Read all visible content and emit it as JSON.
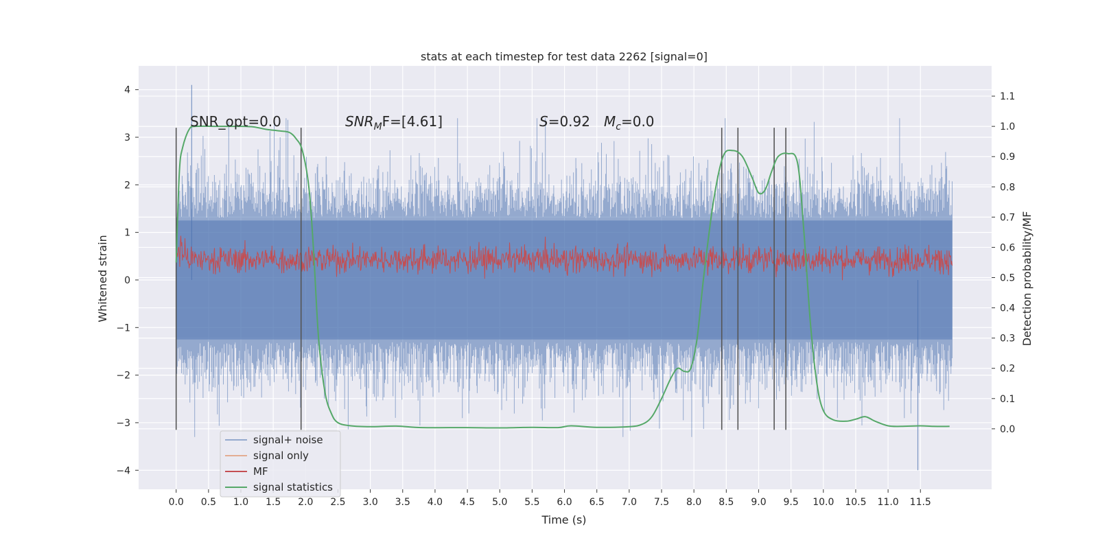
{
  "chart_data": {
    "type": "line",
    "title": "stats at each timestep for test data 2262 [signal=0]",
    "xlabel": "Time (s)",
    "ylabel_left": "Whitened strain",
    "ylabel_right": "Detection probability/MF",
    "xlim": [
      -0.58,
      12.6
    ],
    "ylim_left": [
      -4.4,
      4.5
    ],
    "ylim_right": [
      -0.2,
      1.2
    ],
    "x_ticks": [
      "0.0",
      "0.5",
      "1.0",
      "1.5",
      "2.0",
      "2.5",
      "3.0",
      "3.5",
      "4.0",
      "4.5",
      "5.0",
      "5.5",
      "6.0",
      "6.5",
      "7.0",
      "7.5",
      "8.0",
      "8.5",
      "9.0",
      "9.5",
      "10.0",
      "10.5",
      "11.0",
      "11.5"
    ],
    "y_ticks_left": [
      4,
      3,
      2,
      1,
      0,
      -1,
      -2,
      -3,
      -4
    ],
    "y_ticks_left_labels": [
      "4",
      "3",
      "2",
      "1",
      "0",
      "−1",
      "−2",
      "−3",
      "−4"
    ],
    "y_ticks_right": [
      "0.0",
      "0.1",
      "0.2",
      "0.3",
      "0.4",
      "0.5",
      "0.6",
      "0.7",
      "0.8",
      "0.9",
      "1.0",
      "1.1"
    ],
    "grid": true,
    "legend_placement": "lower-left",
    "annotations": {
      "snr_opt": "SNR_opt=0.0",
      "snr_mf_base": "SNR",
      "snr_mf_sub": "M",
      "snr_mf_rest": "F=[4.61]",
      "s_sym": "S",
      "s_val": "=0.92",
      "mc_sym": "M",
      "mc_sub": "c",
      "mc_val": "=0.0"
    },
    "series": [
      {
        "name": "signal+ noise",
        "color": "#4c72b0",
        "axis": "left",
        "x_range": [
          0.0,
          11.99
        ],
        "band": [
          -1.25,
          1.25
        ],
        "spike_extent": [
          -2.4,
          2.4
        ],
        "max": 4.1,
        "min": -4.0
      },
      {
        "name": "signal only",
        "color": "#dd8452",
        "axis": "left",
        "values": []
      },
      {
        "name": "MF",
        "color": "#c44e52",
        "axis": "right",
        "x_range": [
          0.0,
          11.99
        ],
        "band": [
          0.5,
          0.62
        ]
      },
      {
        "name": "signal statistics",
        "color": "#55a868",
        "axis": "right",
        "points": [
          [
            0.0,
            0.55
          ],
          [
            0.05,
            0.85
          ],
          [
            0.1,
            0.93
          ],
          [
            0.2,
            0.99
          ],
          [
            0.3,
            1.0
          ],
          [
            0.6,
            1.0
          ],
          [
            1.0,
            1.0
          ],
          [
            1.2,
            0.998
          ],
          [
            1.4,
            0.99
          ],
          [
            1.6,
            0.985
          ],
          [
            1.75,
            0.98
          ],
          [
            1.85,
            0.96
          ],
          [
            1.95,
            0.92
          ],
          [
            2.05,
            0.8
          ],
          [
            2.12,
            0.6
          ],
          [
            2.2,
            0.3
          ],
          [
            2.3,
            0.12
          ],
          [
            2.4,
            0.05
          ],
          [
            2.5,
            0.02
          ],
          [
            2.7,
            0.01
          ],
          [
            3.0,
            0.007
          ],
          [
            3.4,
            0.009
          ],
          [
            3.8,
            0.004
          ],
          [
            4.5,
            0.004
          ],
          [
            5.0,
            0.003
          ],
          [
            5.5,
            0.005
          ],
          [
            5.9,
            0.004
          ],
          [
            6.1,
            0.01
          ],
          [
            6.5,
            0.005
          ],
          [
            7.0,
            0.007
          ],
          [
            7.2,
            0.015
          ],
          [
            7.35,
            0.04
          ],
          [
            7.5,
            0.1
          ],
          [
            7.65,
            0.17
          ],
          [
            7.75,
            0.2
          ],
          [
            7.85,
            0.19
          ],
          [
            7.95,
            0.2
          ],
          [
            8.05,
            0.3
          ],
          [
            8.15,
            0.5
          ],
          [
            8.3,
            0.75
          ],
          [
            8.45,
            0.9
          ],
          [
            8.6,
            0.92
          ],
          [
            8.75,
            0.9
          ],
          [
            8.9,
            0.83
          ],
          [
            9.0,
            0.78
          ],
          [
            9.1,
            0.79
          ],
          [
            9.2,
            0.85
          ],
          [
            9.3,
            0.9
          ],
          [
            9.45,
            0.91
          ],
          [
            9.6,
            0.88
          ],
          [
            9.7,
            0.65
          ],
          [
            9.8,
            0.35
          ],
          [
            9.9,
            0.15
          ],
          [
            10.0,
            0.06
          ],
          [
            10.15,
            0.03
          ],
          [
            10.35,
            0.025
          ],
          [
            10.5,
            0.032
          ],
          [
            10.65,
            0.04
          ],
          [
            10.8,
            0.025
          ],
          [
            11.0,
            0.01
          ],
          [
            11.2,
            0.008
          ],
          [
            11.5,
            0.01
          ],
          [
            11.7,
            0.008
          ],
          [
            11.95,
            0.008
          ]
        ]
      }
    ],
    "vertical_markers": [
      0.0,
      1.93,
      8.43,
      8.68,
      9.24,
      9.42
    ],
    "vertical_marker_range": [
      -3.15,
      3.2
    ]
  }
}
